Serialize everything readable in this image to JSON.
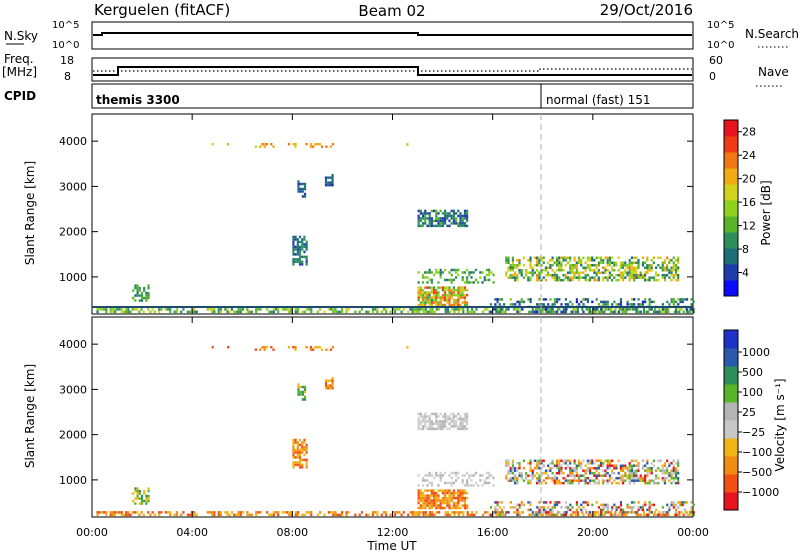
{
  "header": {
    "station": "Kerguelen (fitACF)",
    "beam": "Beam 02",
    "date": "29/Oct/2016"
  },
  "panels": {
    "nsky": {
      "left_label": "N.Sky",
      "left_ticks": [
        "10^5",
        "10^0"
      ],
      "right_ticks": [
        "10^5",
        "10^0"
      ],
      "right_label": "N.Search"
    },
    "freq": {
      "left_label_1": "Freq.",
      "left_label_2": "[MHz]",
      "left_ticks": [
        "18",
        "8"
      ],
      "right_ticks": [
        "60",
        "0"
      ],
      "right_label": "Nave"
    },
    "cpid": {
      "label": "CPID",
      "segments": [
        "themis 3300",
        "normal (fast) 151"
      ]
    }
  },
  "chart_data": [
    {
      "type": "heatmap",
      "name": "power",
      "ylabel": "Slant Range [km]",
      "ylim": [
        180,
        4600
      ],
      "yticks": [
        "1000",
        "2000",
        "3000",
        "4000"
      ],
      "colorbar_label": "Power [dB]",
      "colorbar_ticks": [
        "4",
        "8",
        "12",
        "16",
        "20",
        "24",
        "28"
      ],
      "colorbar_colors": [
        "#0a0aff",
        "#1e3caa",
        "#1e6e78",
        "#2f8f5b",
        "#5ab42a",
        "#8fd21e",
        "#d2d21e",
        "#f0aa14",
        "#f07814",
        "#f03c14",
        "#e6141e"
      ],
      "scale": [
        0,
        30
      ]
    },
    {
      "type": "heatmap",
      "name": "velocity",
      "ylabel": "Slant Range [km]",
      "ylim": [
        180,
        4600
      ],
      "yticks": [
        "1000",
        "2000",
        "3000",
        "4000"
      ],
      "colorbar_label": "Velocity [m s⁻¹]",
      "colorbar_ticks": [
        "1000",
        "500",
        "100",
        "25",
        "−25",
        "−100",
        "−500",
        "−1000"
      ],
      "colorbar_colors": [
        "#1e32c8",
        "#2a5aaa",
        "#2f8f5b",
        "#5ab42a",
        "#b4b4b4",
        "#c8c8c8",
        "#f0b414",
        "#f08c14",
        "#f05014",
        "#e6141e"
      ]
    }
  ],
  "x_axis": {
    "ticks": [
      "00:00",
      "04:00",
      "08:00",
      "12:00",
      "16:00",
      "20:00",
      "00:00"
    ],
    "label": "Time UT"
  }
}
